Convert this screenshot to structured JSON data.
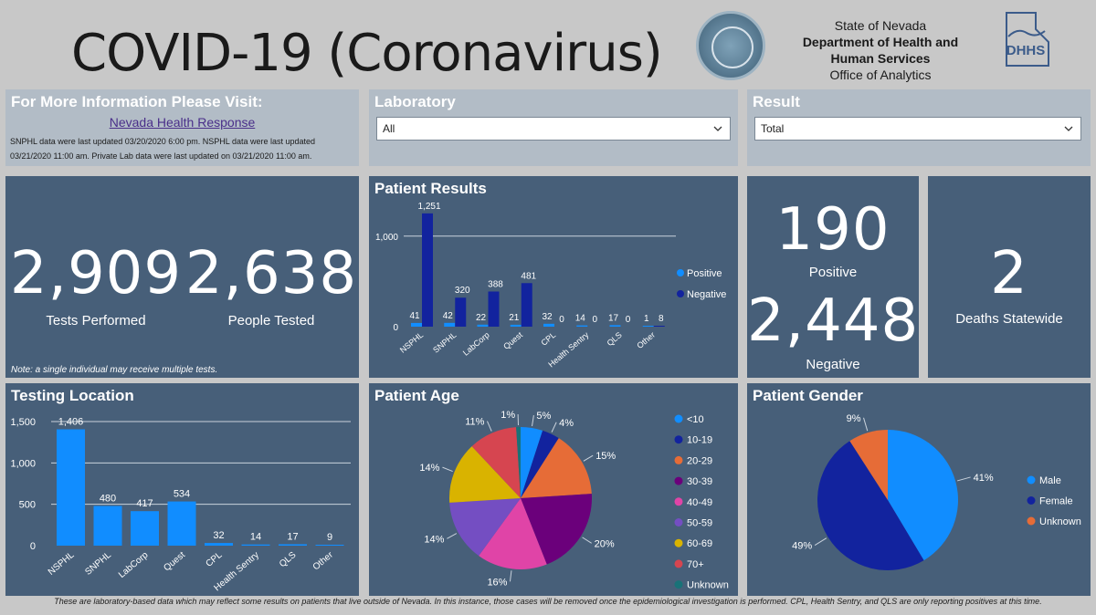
{
  "header": {
    "title": "COVID-19 (Coronavirus)",
    "agency_line1": "State of Nevada",
    "agency_line2": "Department of Health and",
    "agency_line3": "Human Services",
    "agency_line4": "Office of Analytics",
    "seal_text": "THE GREAT SEAL OF THE STATE OF NEVADA",
    "logo_text": "DHHS"
  },
  "info": {
    "title": "For More Information Please Visit:",
    "link": "Nevada Health Response",
    "updated": "SNPHL data were last updated 03/20/2020 6:00 pm. NSPHL data were last updated 03/21/2020 11:00 am.  Private Lab data were last updated on 03/21/2020 11:00 am."
  },
  "filters": {
    "laboratory_label": "Laboratory",
    "laboratory_value": "All",
    "result_label": "Result",
    "result_value": "Total"
  },
  "kpis": {
    "tests_performed": "2,909",
    "tests_performed_label": "Tests Performed",
    "people_tested": "2,638",
    "people_tested_label": "People Tested",
    "note": "Note: a single individual may receive multiple tests.",
    "positive": "190",
    "positive_label": "Positive",
    "negative": "2,448",
    "negative_label": "Negative",
    "deaths": "2",
    "deaths_label": "Deaths Statewide"
  },
  "panels": {
    "patient_results": "Patient Results",
    "testing_location": "Testing Location",
    "patient_age": "Patient Age",
    "patient_gender": "Patient Gender"
  },
  "footer": "These are laboratory-based data which may reflect some results on patients that live outside of Nevada. In this instance, those cases will be removed once the epidemiological investigation is performed.  CPL, Health Sentry, and QLS are only reporting positives at this time.",
  "colors": {
    "positive": "#118dff",
    "negative": "#12239e",
    "bar": "#118dff"
  },
  "chart_data": [
    {
      "id": "patient_results",
      "type": "bar",
      "title": "Patient Results",
      "categories": [
        "NSPHL",
        "SNPHL",
        "LabCorp",
        "Quest",
        "CPL",
        "Health Sentry",
        "QLS",
        "Other"
      ],
      "series": [
        {
          "name": "Positive",
          "color": "#118dff",
          "values": [
            41,
            42,
            22,
            21,
            32,
            14,
            17,
            1
          ]
        },
        {
          "name": "Negative",
          "color": "#12239e",
          "values": [
            1251,
            320,
            388,
            481,
            0,
            0,
            0,
            8
          ]
        }
      ],
      "ylim": [
        0,
        1300
      ],
      "yticks": [
        0,
        1000
      ],
      "ytick_labels": [
        "0",
        "1,000"
      ],
      "legend": "right"
    },
    {
      "id": "testing_location",
      "type": "bar",
      "title": "Testing Location",
      "categories": [
        "NSPHL",
        "SNPHL",
        "LabCorp",
        "Quest",
        "CPL",
        "Health Sentry",
        "QLS",
        "Other"
      ],
      "values": [
        1406,
        480,
        417,
        534,
        32,
        14,
        17,
        9
      ],
      "value_labels": [
        "1,406",
        "480",
        "417",
        "534",
        "32",
        "14",
        "17",
        "9"
      ],
      "ylim": [
        0,
        1500
      ],
      "yticks": [
        0,
        500,
        1000,
        1500
      ],
      "ytick_labels": [
        "0",
        "500",
        "1,000",
        "1,500"
      ]
    },
    {
      "id": "patient_age",
      "type": "pie",
      "title": "Patient Age",
      "labels": [
        "<10",
        "10-19",
        "20-29",
        "30-39",
        "40-49",
        "50-59",
        "60-69",
        "70+",
        "Unknown"
      ],
      "values": [
        5,
        4,
        15,
        20,
        16,
        14,
        14,
        11,
        1
      ],
      "value_labels": [
        "5%",
        "4%",
        "15%",
        "20%",
        "16%",
        "14%",
        "14%",
        "11%",
        "1%"
      ],
      "colors": [
        "#118dff",
        "#12239e",
        "#e66c37",
        "#6b007b",
        "#e044a7",
        "#744ec2",
        "#d9b300",
        "#d64550",
        "#197278"
      ],
      "legend": "right"
    },
    {
      "id": "patient_gender",
      "type": "pie",
      "title": "Patient Gender",
      "labels": [
        "Male",
        "Female",
        "Unknown"
      ],
      "values": [
        41,
        49,
        9
      ],
      "value_labels": [
        "41%",
        "49%",
        "9%"
      ],
      "colors": [
        "#118dff",
        "#12239e",
        "#e66c37"
      ],
      "legend": "right"
    }
  ]
}
